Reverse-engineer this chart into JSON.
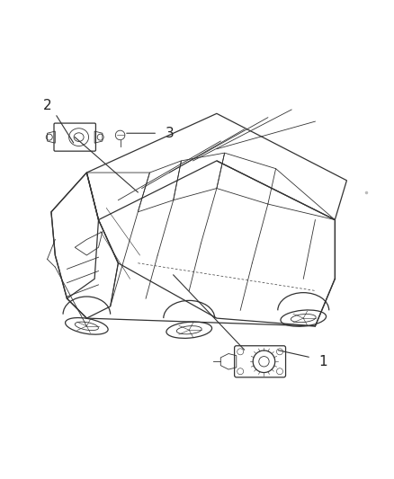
{
  "title": "",
  "background_color": "#ffffff",
  "fig_width": 4.38,
  "fig_height": 5.33,
  "dpi": 100,
  "line_color": "#333333",
  "label_fontsize": 11,
  "label_color": "#222222"
}
